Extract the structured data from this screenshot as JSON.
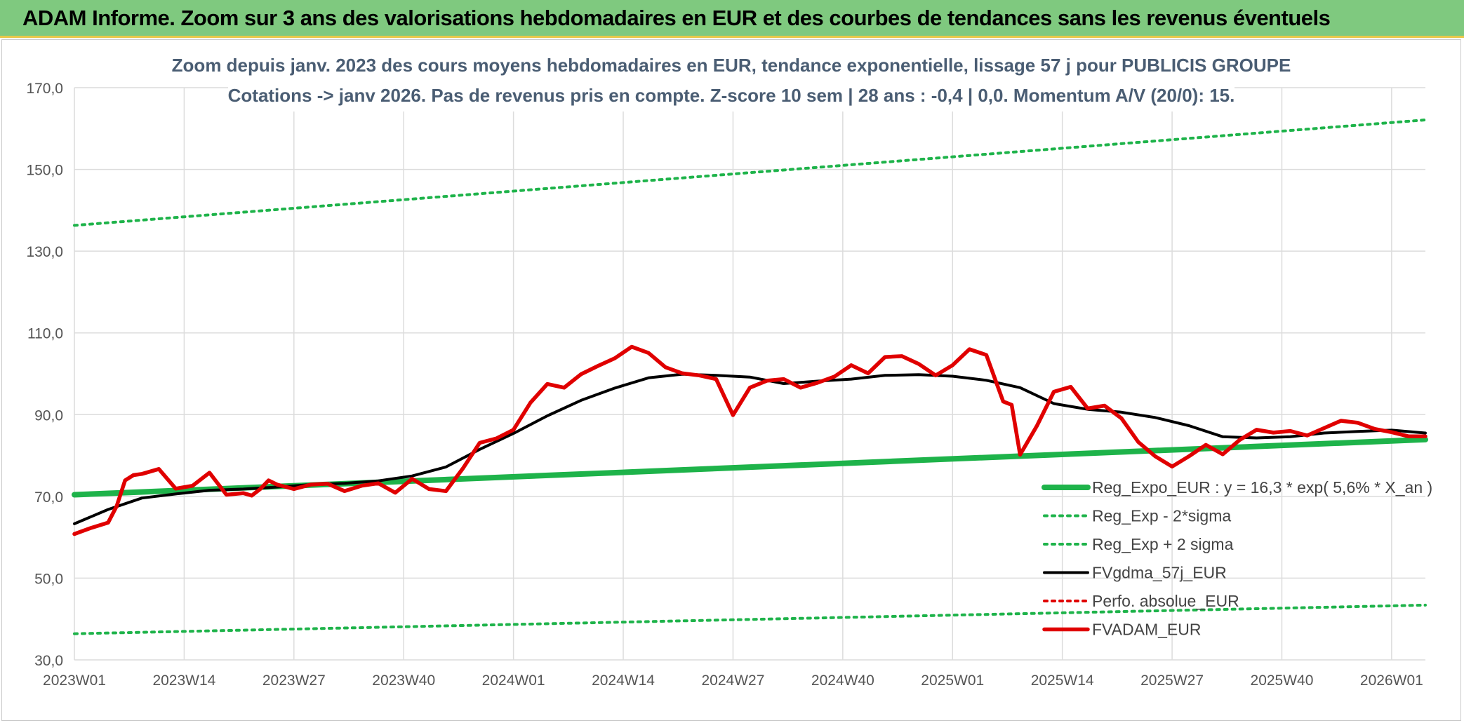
{
  "banner": {
    "title": "ADAM Informe. Zoom sur 3 ans des valorisations hebdomadaires en EUR et des courbes de tendances sans les revenus éventuels"
  },
  "colors": {
    "banner_bg": "#7fc97f",
    "banner_border": "#e8c84a",
    "reg_expo": "#1eb34a",
    "sigma": "#1eb34a",
    "fvgdma": "#000000",
    "perfo": "#e00000",
    "fvadam": "#e00000",
    "grid": "#dcdcdc"
  },
  "chart_data": {
    "type": "line",
    "title": "Zoom depuis janv. 2023 des cours moyens hebdomadaires en EUR, tendance exponentielle, lissage 57 j pour PUBLICIS GROUPE",
    "subtitle": "Cotations -> janv 2026. Pas de revenus pris en compte. Z-score 10 sem | 28 ans : -0,4 | 0,0. Momentum A/V (20/0): 15.",
    "xlabel": "",
    "ylabel": "",
    "ylim": [
      30,
      170
    ],
    "yticks": [
      "30,0",
      "50,0",
      "70,0",
      "90,0",
      "110,0",
      "130,0",
      "150,0",
      "170,0"
    ],
    "yticks_values": [
      30,
      50,
      70,
      90,
      110,
      130,
      150,
      170
    ],
    "xlim": [
      0,
      160
    ],
    "xticks": [
      "2023W01",
      "2023W14",
      "2023W27",
      "2023W40",
      "2024W01",
      "2024W14",
      "2024W27",
      "2024W40",
      "2025W01",
      "2025W14",
      "2025W27",
      "2025W40",
      "2026W01"
    ],
    "xticks_values": [
      0,
      13,
      26,
      39,
      52,
      65,
      78,
      91,
      104,
      117,
      130,
      143,
      156
    ],
    "grid": true,
    "legend_position": "bottom-right",
    "series": [
      {
        "name": "Reg_Expo_EUR : y = 16,3 * exp( 5,6% *  X_an )",
        "style": "solid-thick",
        "color_key": "reg_expo",
        "x": [
          0,
          160
        ],
        "y": [
          70.4,
          83.9
        ]
      },
      {
        "name": "Reg_Exp - 2*sigma",
        "style": "dotted",
        "color_key": "sigma",
        "x": [
          0,
          160
        ],
        "y": [
          36.4,
          43.4
        ]
      },
      {
        "name": "Reg_Exp + 2 sigma",
        "style": "dotted",
        "color_key": "sigma",
        "x": [
          0,
          160
        ],
        "y": [
          136.3,
          162.1
        ]
      },
      {
        "name": "FVgdma_57j_EUR",
        "style": "solid",
        "color_key": "fvgdma",
        "x": [
          0,
          4,
          8,
          12,
          16,
          20,
          24,
          28,
          32,
          36,
          40,
          44,
          48,
          52,
          56,
          60,
          64,
          68,
          72,
          76,
          80,
          84,
          88,
          92,
          96,
          100,
          104,
          108,
          112,
          116,
          120,
          124,
          128,
          132,
          136,
          140,
          144,
          148,
          152,
          156,
          160
        ],
        "y": [
          63.3,
          66.8,
          69.6,
          70.6,
          71.5,
          71.8,
          72.3,
          72.9,
          73.2,
          73.8,
          75.0,
          77.2,
          81.5,
          85.4,
          89.7,
          93.5,
          96.5,
          99.0,
          99.9,
          99.6,
          99.2,
          97.6,
          98.2,
          98.7,
          99.6,
          99.8,
          99.4,
          98.4,
          96.6,
          92.7,
          91.3,
          90.6,
          89.3,
          87.3,
          84.6,
          84.3,
          84.6,
          85.5,
          85.9,
          86.2,
          85.5
        ]
      },
      {
        "name": "Perfo. absolue_EUR",
        "style": "dotted",
        "color_key": "perfo",
        "x": [],
        "y": []
      },
      {
        "name": "FVADAM_EUR",
        "style": "solid-thick",
        "color_key": "fvadam",
        "x": [
          0,
          2,
          4,
          5,
          6,
          7,
          8,
          10,
          12,
          14,
          16,
          18,
          20,
          21,
          22,
          23,
          24,
          26,
          28,
          30,
          32,
          34,
          36,
          38,
          40,
          42,
          44,
          46,
          48,
          50,
          52,
          54,
          56,
          58,
          60,
          62,
          64,
          66,
          68,
          70,
          72,
          74,
          76,
          78,
          80,
          82,
          84,
          86,
          88,
          90,
          92,
          94,
          96,
          98,
          100,
          102,
          104,
          106,
          108,
          110,
          111,
          112,
          114,
          116,
          118,
          120,
          122,
          124,
          126,
          128,
          130,
          132,
          134,
          136,
          138,
          140,
          142,
          144,
          146,
          148,
          150,
          152,
          154,
          156,
          158,
          160
        ],
        "y": [
          60.8,
          62.3,
          63.6,
          67.6,
          73.9,
          75.2,
          75.5,
          76.7,
          71.9,
          72.6,
          75.8,
          70.4,
          70.8,
          70.2,
          71.8,
          73.9,
          72.9,
          71.8,
          72.9,
          73.1,
          71.3,
          72.6,
          73.2,
          70.9,
          74.3,
          71.8,
          71.3,
          76.8,
          83.1,
          84.2,
          86.3,
          92.9,
          97.5,
          96.6,
          99.9,
          101.9,
          103.8,
          106.6,
          105.1,
          101.6,
          100.1,
          99.6,
          98.7,
          89.9,
          96.6,
          98.3,
          98.7,
          96.6,
          97.8,
          99.3,
          102.1,
          100.1,
          104.1,
          104.3,
          102.4,
          99.6,
          102.1,
          106.0,
          104.6,
          93.2,
          92.4,
          80.2,
          87.3,
          95.6,
          96.8,
          91.5,
          92.2,
          89.1,
          83.3,
          79.8,
          77.3,
          79.8,
          82.6,
          80.3,
          83.8,
          86.3,
          85.6,
          86.0,
          84.9,
          86.7,
          88.5,
          88.0,
          86.5,
          85.7,
          84.7,
          84.7
        ]
      }
    ]
  }
}
